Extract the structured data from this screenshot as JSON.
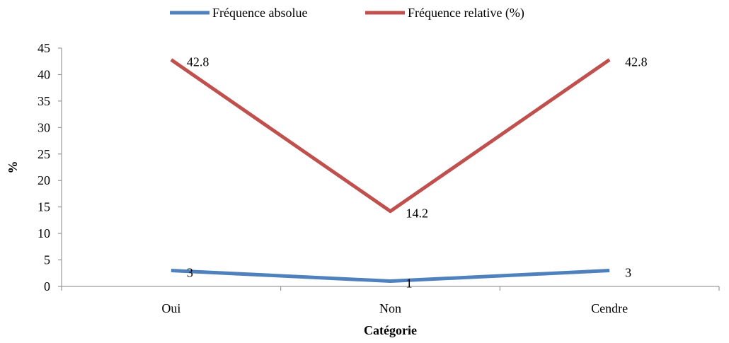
{
  "chart_data": {
    "type": "line",
    "categories": [
      "Oui",
      "Non",
      "Cendre"
    ],
    "series": [
      {
        "name": "Fréquence absolue",
        "values": [
          3,
          1,
          3
        ],
        "color": "#4F81BD",
        "labels": [
          "3",
          "1",
          "3"
        ]
      },
      {
        "name": "Fréquence relative (%)",
        "values": [
          42.8,
          14.2,
          42.8
        ],
        "color": "#C0504D",
        "labels": [
          "42.8",
          "14.2",
          "42.8"
        ]
      }
    ],
    "xlabel": "Catégorie",
    "ylabel": "%",
    "ylim": [
      0,
      45
    ],
    "yticks": [
      0,
      5,
      10,
      15,
      20,
      25,
      30,
      35,
      40,
      45
    ],
    "grid": false,
    "legend_position": "top"
  }
}
